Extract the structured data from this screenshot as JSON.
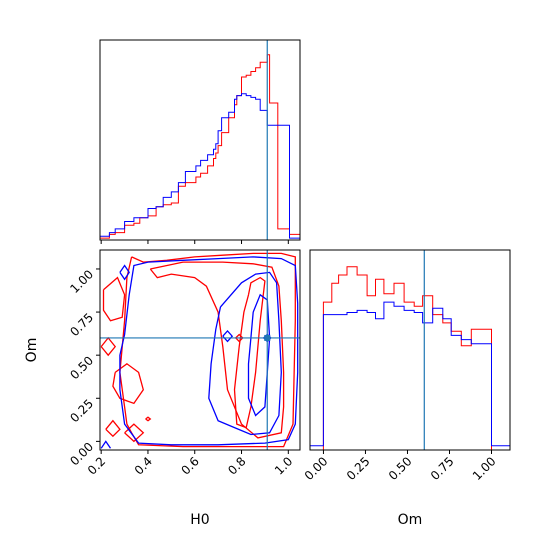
{
  "chart_data": [
    {
      "type": "histogram",
      "panel": "H0 marginal",
      "xlim": [
        0.195,
        1.05
      ],
      "truth": 0.91,
      "x_ticks": [
        0.2,
        0.4,
        0.6,
        0.8,
        1.0
      ],
      "series": [
        {
          "color": "#ff0000",
          "edges": [
            0.195,
            0.235,
            0.26,
            0.3,
            0.34,
            0.365,
            0.4,
            0.435,
            0.465,
            0.5,
            0.53,
            0.56,
            0.605,
            0.625,
            0.655,
            0.68,
            0.69,
            0.7,
            0.715,
            0.745,
            0.77,
            0.78,
            0.8,
            0.82,
            0.84,
            0.86,
            0.88,
            0.91,
            0.92,
            0.955,
            1.005,
            1.05
          ],
          "density": [
            0.01,
            0.03,
            0.04,
            0.08,
            0.09,
            0.12,
            0.13,
            0.18,
            0.19,
            0.2,
            0.29,
            0.31,
            0.34,
            0.36,
            0.4,
            0.44,
            0.47,
            0.51,
            0.58,
            0.66,
            0.73,
            0.78,
            0.88,
            0.89,
            0.91,
            0.93,
            0.96,
            1.0,
            0.74,
            0.06,
            0.03
          ]
        },
        {
          "color": "#0000ff",
          "edges": [
            0.195,
            0.235,
            0.26,
            0.3,
            0.34,
            0.4,
            0.435,
            0.465,
            0.5,
            0.53,
            0.56,
            0.605,
            0.625,
            0.655,
            0.68,
            0.69,
            0.7,
            0.715,
            0.745,
            0.77,
            0.78,
            0.8,
            0.82,
            0.84,
            0.86,
            0.88,
            0.91,
            1.005,
            1.05
          ],
          "density": [
            0.02,
            0.04,
            0.06,
            0.1,
            0.12,
            0.17,
            0.18,
            0.23,
            0.26,
            0.31,
            0.37,
            0.4,
            0.43,
            0.46,
            0.49,
            0.52,
            0.59,
            0.66,
            0.69,
            0.76,
            0.78,
            0.79,
            0.78,
            0.77,
            0.76,
            0.7,
            0.62,
            0.01
          ]
        }
      ]
    },
    {
      "type": "contour",
      "panel": "H0 vs Om joint",
      "xlabel": "H0",
      "ylabel": "Om",
      "xlim": [
        0.195,
        1.05
      ],
      "ylim": [
        -0.05,
        1.11
      ],
      "x_ticks": [
        0.2,
        0.4,
        0.6,
        0.8,
        1.0
      ],
      "y_ticks": [
        0.0,
        0.25,
        0.5,
        0.75,
        1.0
      ],
      "truth": {
        "H0": 0.91,
        "Om": 0.6
      },
      "series": [
        {
          "color": "#ff0000",
          "contours": [
            [
              [
                0.33,
                1.07
              ],
              [
                0.38,
                1.04
              ],
              [
                0.48,
                1.05
              ],
              [
                0.6,
                1.07
              ],
              [
                0.72,
                1.08
              ],
              [
                0.85,
                1.09
              ],
              [
                0.97,
                1.09
              ],
              [
                1.03,
                1.07
              ],
              [
                1.03,
                0.7
              ],
              [
                1.02,
                0.1
              ],
              [
                0.98,
                -0.03
              ],
              [
                0.8,
                -0.03
              ],
              [
                0.55,
                -0.03
              ],
              [
                0.36,
                -0.02
              ],
              [
                0.33,
                0.05
              ],
              [
                0.31,
                0.1
              ],
              [
                0.3,
                0.2
              ],
              [
                0.28,
                0.4
              ],
              [
                0.3,
                0.7
              ],
              [
                0.31,
                0.95
              ],
              [
                0.33,
                1.07
              ]
            ],
            [
              [
                0.41,
                1.0
              ],
              [
                0.55,
                1.04
              ],
              [
                0.72,
                1.04
              ],
              [
                0.85,
                1.03
              ],
              [
                0.93,
                1.01
              ],
              [
                0.96,
                0.9
              ],
              [
                0.97,
                0.7
              ],
              [
                0.98,
                0.4
              ],
              [
                0.98,
                0.2
              ],
              [
                0.97,
                0.05
              ],
              [
                0.87,
                0.02
              ],
              [
                0.8,
                0.1
              ],
              [
                0.74,
                0.3
              ],
              [
                0.72,
                0.55
              ],
              [
                0.7,
                0.75
              ],
              [
                0.65,
                0.9
              ],
              [
                0.6,
                0.95
              ],
              [
                0.5,
                0.97
              ],
              [
                0.44,
                0.95
              ],
              [
                0.41,
                1.0
              ]
            ],
            [
              [
                0.83,
                0.85
              ],
              [
                0.84,
                0.92
              ],
              [
                0.88,
                0.95
              ],
              [
                0.9,
                0.93
              ],
              [
                0.88,
                0.7
              ],
              [
                0.86,
                0.4
              ],
              [
                0.84,
                0.2
              ],
              [
                0.82,
                0.08
              ],
              [
                0.78,
                0.1
              ],
              [
                0.77,
                0.3
              ],
              [
                0.79,
                0.55
              ],
              [
                0.81,
                0.75
              ],
              [
                0.83,
                0.85
              ]
            ],
            [
              [
                0.21,
                0.88
              ],
              [
                0.27,
                0.95
              ],
              [
                0.3,
                0.85
              ],
              [
                0.29,
                0.72
              ],
              [
                0.24,
                0.7
              ],
              [
                0.21,
                0.76
              ],
              [
                0.21,
                0.88
              ]
            ],
            [
              [
                0.26,
                0.4
              ],
              [
                0.31,
                0.45
              ],
              [
                0.36,
                0.4
              ],
              [
                0.38,
                0.3
              ],
              [
                0.34,
                0.22
              ],
              [
                0.28,
                0.25
              ],
              [
                0.25,
                0.32
              ],
              [
                0.26,
                0.4
              ]
            ],
            [
              [
                0.3,
                0.05
              ],
              [
                0.34,
                0.1
              ],
              [
                0.38,
                0.05
              ],
              [
                0.34,
                0.0
              ],
              [
                0.3,
                0.05
              ]
            ],
            [
              [
                0.22,
                0.07
              ],
              [
                0.25,
                0.12
              ],
              [
                0.28,
                0.07
              ],
              [
                0.25,
                0.03
              ],
              [
                0.22,
                0.07
              ]
            ],
            [
              [
                0.2,
                0.55
              ],
              [
                0.23,
                0.6
              ],
              [
                0.26,
                0.55
              ],
              [
                0.23,
                0.5
              ],
              [
                0.2,
                0.55
              ]
            ],
            [
              [
                0.775,
                0.6
              ],
              [
                0.79,
                0.62
              ],
              [
                0.805,
                0.6
              ],
              [
                0.79,
                0.58
              ],
              [
                0.775,
                0.6
              ]
            ],
            [
              [
                0.39,
                0.13
              ],
              [
                0.4,
                0.14
              ],
              [
                0.41,
                0.13
              ],
              [
                0.4,
                0.12
              ],
              [
                0.39,
                0.13
              ]
            ]
          ]
        },
        {
          "color": "#0000ff",
          "contours": [
            [
              [
                0.3,
                0.62
              ],
              [
                0.32,
                0.85
              ],
              [
                0.34,
                1.02
              ],
              [
                0.4,
                1.04
              ],
              [
                0.55,
                1.05
              ],
              [
                0.7,
                1.06
              ],
              [
                0.85,
                1.07
              ],
              [
                0.97,
                1.06
              ],
              [
                1.03,
                1.02
              ],
              [
                1.04,
                0.8
              ],
              [
                1.04,
                0.4
              ],
              [
                1.03,
                0.1
              ],
              [
                1.0,
                0.01
              ],
              [
                0.9,
                -0.01
              ],
              [
                0.7,
                -0.02
              ],
              [
                0.5,
                -0.02
              ],
              [
                0.36,
                -0.01
              ],
              [
                0.3,
                0.1
              ],
              [
                0.28,
                0.3
              ],
              [
                0.28,
                0.5
              ],
              [
                0.3,
                0.62
              ]
            ],
            [
              [
                0.71,
                0.78
              ],
              [
                0.8,
                0.92
              ],
              [
                0.86,
                0.97
              ],
              [
                0.92,
                0.98
              ],
              [
                0.95,
                0.92
              ],
              [
                0.96,
                0.7
              ],
              [
                0.97,
                0.4
              ],
              [
                0.96,
                0.15
              ],
              [
                0.92,
                0.05
              ],
              [
                0.84,
                0.04
              ],
              [
                0.77,
                0.08
              ],
              [
                0.7,
                0.12
              ],
              [
                0.66,
                0.25
              ],
              [
                0.67,
                0.45
              ],
              [
                0.69,
                0.65
              ],
              [
                0.71,
                0.78
              ]
            ],
            [
              [
                0.85,
                0.75
              ],
              [
                0.88,
                0.85
              ],
              [
                0.91,
                0.82
              ],
              [
                0.92,
                0.6
              ],
              [
                0.91,
                0.4
              ],
              [
                0.9,
                0.2
              ],
              [
                0.86,
                0.15
              ],
              [
                0.83,
                0.25
              ],
              [
                0.83,
                0.45
              ],
              [
                0.84,
                0.6
              ],
              [
                0.85,
                0.75
              ]
            ],
            [
              [
                0.28,
                0.98
              ],
              [
                0.3,
                1.02
              ],
              [
                0.32,
                0.98
              ],
              [
                0.3,
                0.94
              ],
              [
                0.28,
                0.98
              ]
            ],
            [
              [
                0.72,
                0.61
              ],
              [
                0.74,
                0.64
              ],
              [
                0.76,
                0.61
              ],
              [
                0.74,
                0.58
              ],
              [
                0.72,
                0.61
              ]
            ],
            [
              [
                0.895,
                0.6
              ],
              [
                0.91,
                0.62
              ],
              [
                0.925,
                0.6
              ],
              [
                0.91,
                0.58
              ],
              [
                0.895,
                0.6
              ]
            ],
            [
              [
                0.2,
                -0.04
              ],
              [
                0.22,
                0.0
              ],
              [
                0.24,
                -0.04
              ]
            ]
          ]
        }
      ]
    },
    {
      "type": "histogram",
      "panel": "Om marginal",
      "xlabel": "Om",
      "xlim": [
        -0.08,
        1.11
      ],
      "truth": 0.6,
      "x_ticks": [
        0.0,
        0.25,
        0.5,
        0.75,
        1.0
      ],
      "series": [
        {
          "color": "#ff0000",
          "edges": [
            -0.08,
            0.0,
            0.05,
            0.09,
            0.14,
            0.2,
            0.26,
            0.31,
            0.36,
            0.42,
            0.48,
            0.54,
            0.59,
            0.65,
            0.71,
            0.76,
            0.82,
            0.88,
            0.94,
            1.0,
            1.11
          ],
          "density": [
            0.0,
            0.71,
            0.8,
            0.84,
            0.88,
            0.84,
            0.74,
            0.82,
            0.75,
            0.8,
            0.71,
            0.69,
            0.74,
            0.65,
            0.61,
            0.57,
            0.5,
            0.58,
            0.58,
            0.0
          ]
        },
        {
          "color": "#0000ff",
          "edges": [
            -0.08,
            0.0,
            0.05,
            0.14,
            0.2,
            0.26,
            0.31,
            0.36,
            0.42,
            0.48,
            0.54,
            0.59,
            0.65,
            0.71,
            0.76,
            0.82,
            0.88,
            0.94,
            1.0,
            1.11
          ],
          "density": [
            0.02,
            0.65,
            0.65,
            0.66,
            0.67,
            0.66,
            0.63,
            0.71,
            0.69,
            0.67,
            0.66,
            0.61,
            0.68,
            0.63,
            0.55,
            0.53,
            0.51,
            0.51,
            0.02
          ]
        }
      ]
    }
  ]
}
